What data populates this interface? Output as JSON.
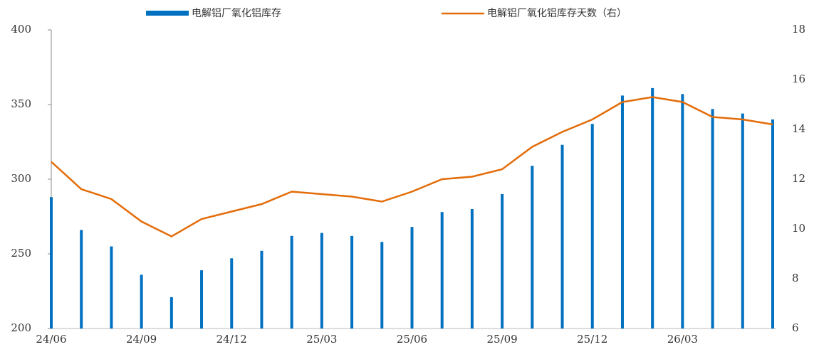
{
  "chart_data": {
    "type": "bar_line",
    "categories": [
      "24/06",
      null,
      null,
      "24/09",
      null,
      null,
      "24/12",
      null,
      null,
      "25/03",
      null,
      null,
      "25/06",
      null,
      null,
      "25/09",
      null,
      null,
      "25/12",
      null,
      null,
      "26/03",
      null,
      null,
      null
    ],
    "series": [
      {
        "name": "电解铝厂氧化铝库存",
        "type": "bar",
        "color": "#0070c0",
        "values": [
          288,
          266,
          255,
          236,
          221,
          239,
          247,
          252,
          262,
          264,
          262,
          258,
          268,
          278,
          280,
          290,
          309,
          323,
          337,
          356,
          361,
          357,
          347,
          344,
          340
        ]
      },
      {
        "name": "电解铝厂氧化铝库存天数（右）",
        "type": "line",
        "axis": "y2",
        "color": "#e36c09",
        "values": [
          12.7,
          11.6,
          11.2,
          10.3,
          9.7,
          10.4,
          10.7,
          11.0,
          11.5,
          11.4,
          11.3,
          11.1,
          11.5,
          12.0,
          12.1,
          12.4,
          13.3,
          13.9,
          14.4,
          15.1,
          15.3,
          15.1,
          14.5,
          14.4,
          14.2
        ]
      }
    ],
    "ylim": [
      200,
      400
    ],
    "yticks": [
      200,
      250,
      300,
      350,
      400
    ],
    "y2lim": [
      6,
      18
    ],
    "y2ticks": [
      6,
      8,
      10,
      12,
      14,
      16,
      18
    ],
    "legend": "top"
  }
}
